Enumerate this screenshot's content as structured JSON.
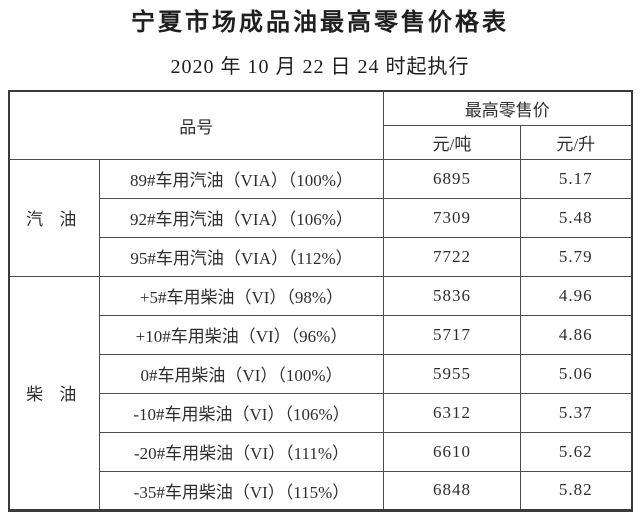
{
  "page": {
    "title": "宁夏市场成品油最高零售价格表",
    "subtitle": "2020 年 10 月 22 日 24 时起执行"
  },
  "table": {
    "header": {
      "product_col": "品号",
      "price_group": "最高零售价",
      "unit_per_ton": "元/吨",
      "unit_per_liter": "元/升"
    },
    "groups": [
      {
        "category": "汽 油",
        "rows": [
          {
            "product": "89#车用汽油（VIA）（100%）",
            "price_per_ton": "6895",
            "price_per_liter": "5.17"
          },
          {
            "product": "92#车用汽油（VIA）（106%）",
            "price_per_ton": "7309",
            "price_per_liter": "5.48"
          },
          {
            "product": "95#车用汽油（VIA）（112%）",
            "price_per_ton": "7722",
            "price_per_liter": "5.79"
          }
        ]
      },
      {
        "category": "柴 油",
        "rows": [
          {
            "product": "+5#车用柴油（VI）（98%）",
            "price_per_ton": "5836",
            "price_per_liter": "4.96"
          },
          {
            "product": "+10#车用柴油（VI）（96%）",
            "price_per_ton": "5717",
            "price_per_liter": "4.86"
          },
          {
            "product": "0#车用柴油（VI）（100%）",
            "price_per_ton": "5955",
            "price_per_liter": "5.06"
          },
          {
            "product": "-10#车用柴油（VI）（106%）",
            "price_per_ton": "6312",
            "price_per_liter": "5.37"
          },
          {
            "product": "-20#车用柴油（VI）（111%）",
            "price_per_ton": "6610",
            "price_per_liter": "5.62"
          },
          {
            "product": "-35#车用柴油（VI）（115%）",
            "price_per_ton": "6848",
            "price_per_liter": "5.82"
          }
        ]
      }
    ]
  },
  "colors": {
    "text": "#2b2b2b",
    "border_inner": "#4d4d4d",
    "border_outer": "#3a3a3a",
    "background": "#ffffff"
  }
}
